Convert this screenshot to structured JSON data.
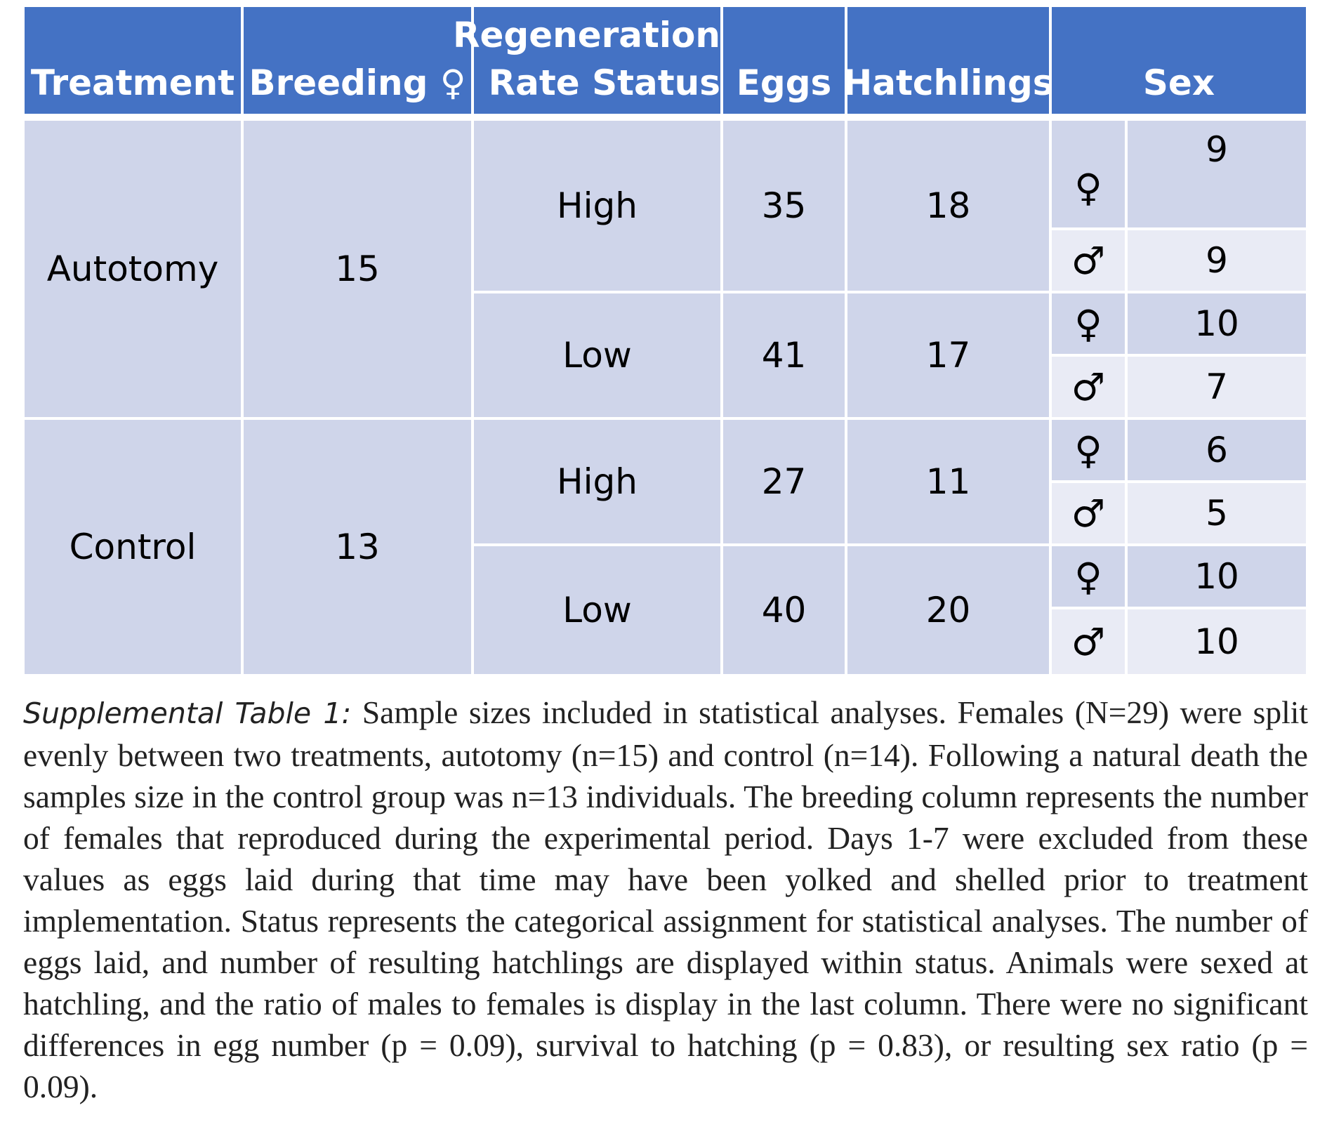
{
  "table": {
    "headers": {
      "treatment": "Treatment",
      "breeding": "Breeding ♀",
      "regeneration_line1": "Regeneration",
      "regeneration_line2": "Rate Status",
      "eggs": "Eggs",
      "hatchlings": "Hatchlings",
      "sex": "Sex"
    },
    "groups": [
      {
        "treatment": "Autotomy",
        "breeding": "15",
        "statuses": [
          {
            "status": "High",
            "eggs": "35",
            "hatchlings": "18",
            "sex": [
              {
                "symbol": "♀",
                "count": "9"
              },
              {
                "symbol": "♂",
                "count": "9"
              }
            ]
          },
          {
            "status": "Low",
            "eggs": "41",
            "hatchlings": "17",
            "sex": [
              {
                "symbol": "♀",
                "count": "10"
              },
              {
                "symbol": "♂",
                "count": "7"
              }
            ]
          }
        ]
      },
      {
        "treatment": "Control",
        "breeding": "13",
        "statuses": [
          {
            "status": "High",
            "eggs": "27",
            "hatchlings": "11",
            "sex": [
              {
                "symbol": "♀",
                "count": "6"
              },
              {
                "symbol": "♂",
                "count": "5"
              }
            ]
          },
          {
            "status": "Low",
            "eggs": "40",
            "hatchlings": "20",
            "sex": [
              {
                "symbol": "♀",
                "count": "10"
              },
              {
                "symbol": "♂",
                "count": "10"
              }
            ]
          }
        ]
      }
    ]
  },
  "caption": {
    "label": "Supplemental Table 1:",
    "text": " Sample sizes included in statistical analyses. Females (N=29) were split evenly between two treatments, autotomy (n=15) and control (n=14). Following a natural death the samples size in the control group was n=13 individuals. The breeding column represents the number of females that reproduced during the experimental period. Days 1-7 were excluded from these values as eggs laid during that time may have been yolked and shelled prior to treatment implementation. Status represents the categorical assignment for statistical analyses. The number of eggs laid, and number of resulting hatchlings are displayed within status. Animals were sexed at hatchling, and the ratio of males to females is display in the last column. There were no significant differences in egg number (p = 0.09), survival to hatching (p = 0.83), or resulting sex ratio (p = 0.09)."
  }
}
